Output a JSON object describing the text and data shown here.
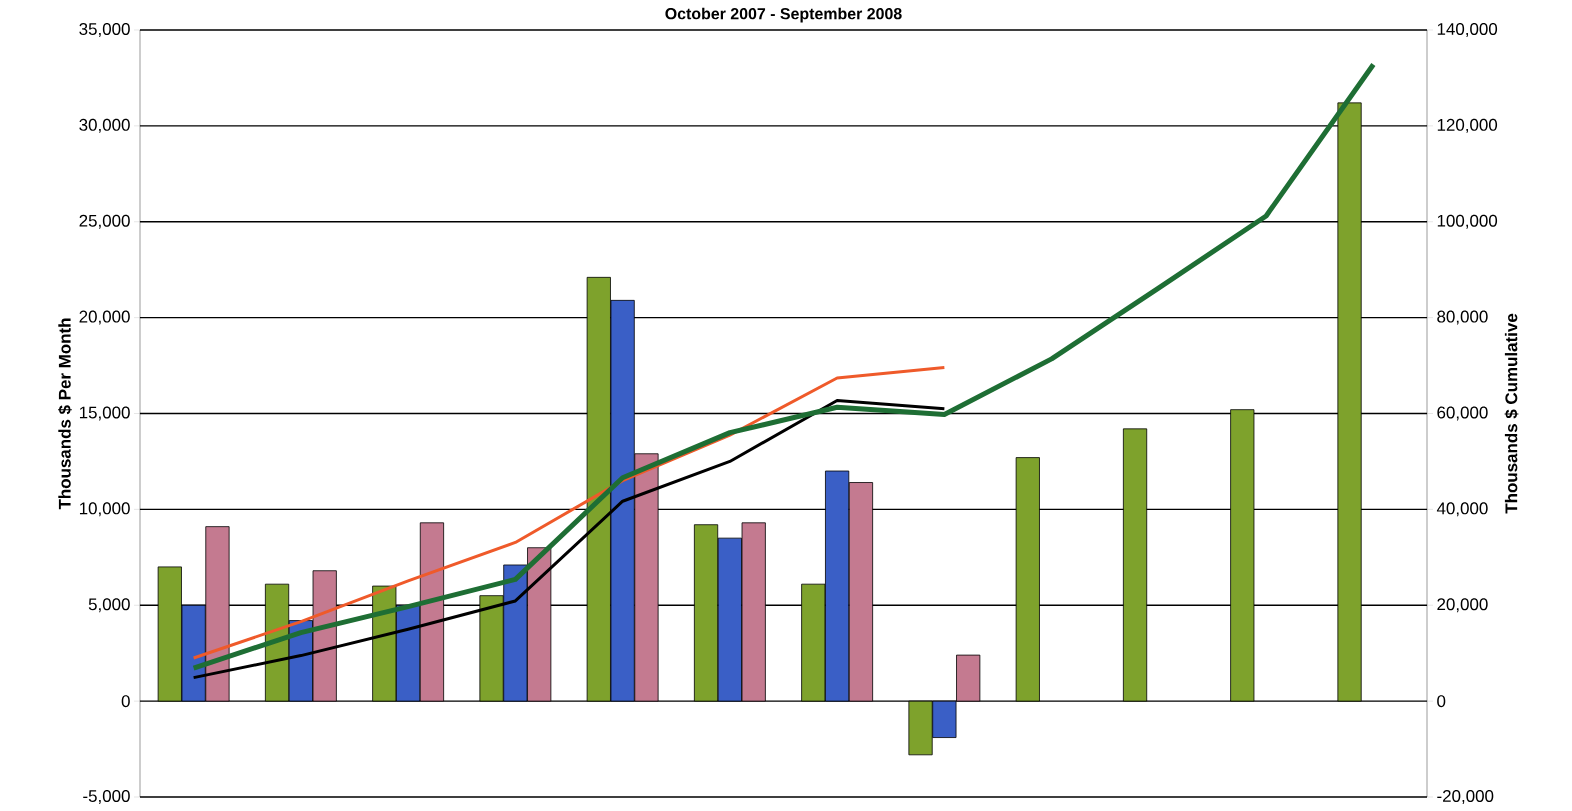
{
  "chart_data": {
    "type": "bar",
    "title": "October 2007 - September 2008",
    "ylabel": "Thousands $ Per Month",
    "y2label": "Thousands $ Cumulative",
    "categories": [
      null,
      null,
      null,
      null,
      null,
      null,
      null,
      null,
      null,
      null,
      null,
      null
    ],
    "series": [
      {
        "color": "#7ea22c",
        "values": [
          7000,
          6100,
          6000,
          5500,
          22100,
          9200,
          6100,
          -2800,
          12700,
          14200,
          15200,
          31200
        ]
      },
      {
        "color": "#3a5fc6",
        "values": [
          5000,
          4200,
          5000,
          7100,
          20900,
          8500,
          12000,
          -1900,
          null,
          null,
          null,
          null
        ]
      },
      {
        "color": "#c47a90",
        "values": [
          9100,
          6800,
          9300,
          8000,
          12900,
          9300,
          11400,
          2400,
          null,
          null,
          null,
          null
        ]
      },
      {
        "type": "line",
        "axis": "y2",
        "color": "#ef5a2a",
        "values": [
          9000,
          16600,
          25100,
          33100,
          46000,
          55500,
          67400,
          69600,
          null,
          null,
          null,
          null
        ]
      },
      {
        "type": "line",
        "axis": "y2",
        "color": "#000000",
        "values": [
          4900,
          9500,
          15000,
          20900,
          41700,
          50000,
          62700,
          61000,
          null,
          null,
          null,
          null
        ]
      },
      {
        "type": "line",
        "axis": "y2",
        "color": "#1e6e34",
        "values": [
          6900,
          14300,
          19700,
          25400,
          46600,
          56000,
          61300,
          59800,
          71400,
          86200,
          101200,
          132800
        ]
      }
    ],
    "ylim": [
      -5000,
      35000
    ],
    "yticks": [
      {
        "value": -5000,
        "label": "-5,000"
      },
      0,
      {
        "value": 5000,
        "label": "5,000"
      },
      {
        "value": 10000,
        "label": "10,000"
      },
      {
        "value": 15000,
        "label": "15,000"
      },
      {
        "value": 20000,
        "label": "20,000"
      },
      {
        "value": 25000,
        "label": "25,000"
      },
      {
        "value": 30000,
        "label": "30,000"
      },
      {
        "value": 35000,
        "label": "35,000"
      }
    ],
    "y2lim": [
      -20000,
      140000
    ],
    "y2ticks": [
      {
        "value": -20000,
        "label": "-20,000"
      },
      0,
      {
        "value": 20000,
        "label": "20,000"
      },
      {
        "value": 40000,
        "label": "40,000"
      },
      {
        "value": 60000,
        "label": "60,000"
      },
      {
        "value": 80000,
        "label": "80,000"
      },
      {
        "value": 100000,
        "label": "100,000"
      },
      {
        "value": 120000,
        "label": "120,000"
      },
      {
        "value": 140000,
        "label": "140,000"
      }
    ],
    "grid": "y",
    "tick_labels": "y"
  }
}
